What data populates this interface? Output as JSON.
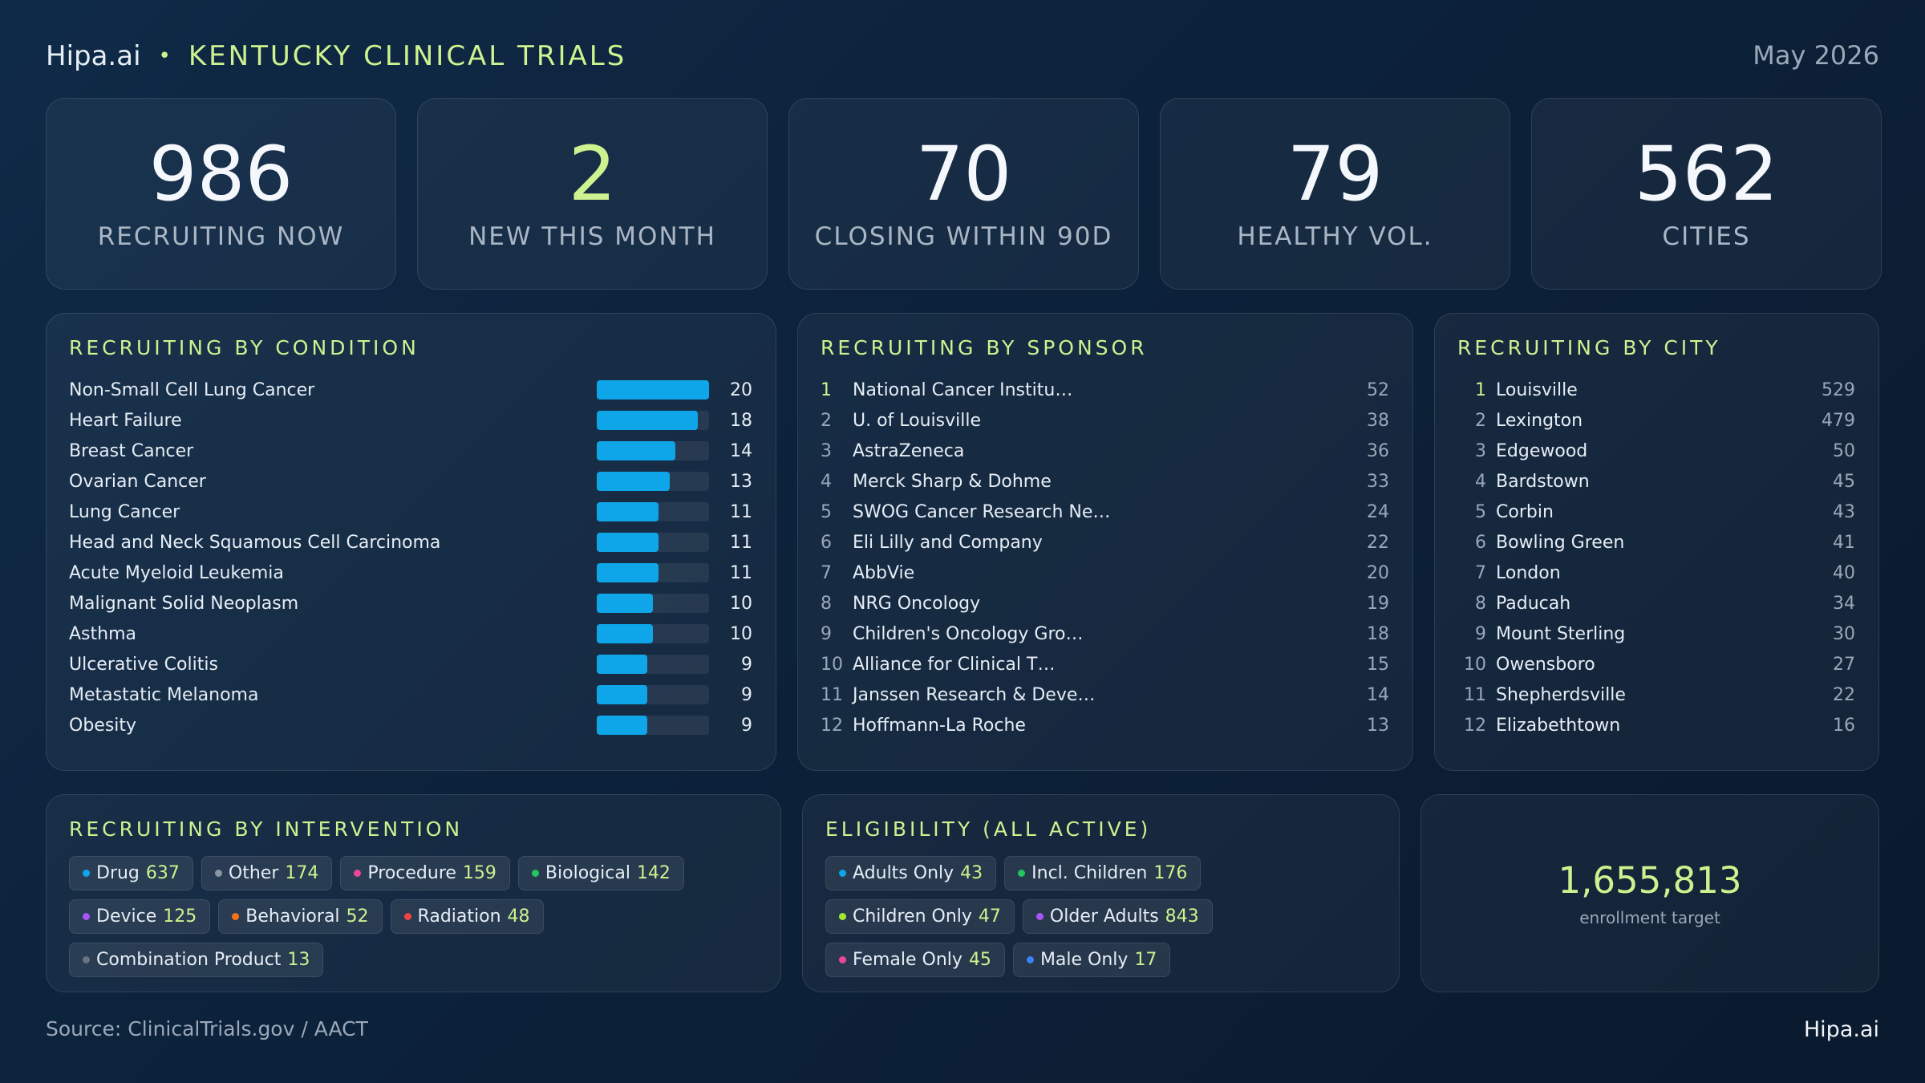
{
  "header": {
    "brand": "Hipa.ai",
    "title": "KENTUCKY CLINICAL TRIALS",
    "date": "May 2026"
  },
  "kpis": [
    {
      "value": 986,
      "label": "RECRUITING NOW"
    },
    {
      "value": 2,
      "label": "NEW THIS MONTH"
    },
    {
      "value": 70,
      "label": "CLOSING WITHIN 90D"
    },
    {
      "value": 79,
      "label": "HEALTHY VOL."
    },
    {
      "value": 562,
      "label": "CITIES"
    }
  ],
  "conditions": {
    "title": "RECRUITING BY CONDITION",
    "items": [
      {
        "name": "Non-Small Cell Lung Cancer",
        "value": 20
      },
      {
        "name": "Heart Failure",
        "value": 18
      },
      {
        "name": "Breast Cancer",
        "value": 14
      },
      {
        "name": "Ovarian Cancer",
        "value": 13
      },
      {
        "name": "Lung Cancer",
        "value": 11
      },
      {
        "name": "Head and Neck Squamous Cell Carcinoma",
        "value": 11
      },
      {
        "name": "Acute Myeloid Leukemia",
        "value": 11
      },
      {
        "name": "Malignant Solid Neoplasm",
        "value": 10
      },
      {
        "name": "Asthma",
        "value": 10
      },
      {
        "name": "Ulcerative Colitis",
        "value": 9
      },
      {
        "name": "Metastatic Melanoma",
        "value": 9
      },
      {
        "name": "Obesity",
        "value": 9
      }
    ]
  },
  "sponsors": {
    "title": "RECRUITING BY SPONSOR",
    "items": [
      {
        "rank": 1,
        "name": "National Cancer Institu…",
        "value": 52
      },
      {
        "rank": 2,
        "name": "U. of Louisville",
        "value": 38
      },
      {
        "rank": 3,
        "name": "AstraZeneca",
        "value": 36
      },
      {
        "rank": 4,
        "name": "Merck Sharp & Dohme",
        "value": 33
      },
      {
        "rank": 5,
        "name": "SWOG Cancer Research Ne…",
        "value": 24
      },
      {
        "rank": 6,
        "name": "Eli Lilly and Company",
        "value": 22
      },
      {
        "rank": 7,
        "name": "AbbVie",
        "value": 20
      },
      {
        "rank": 8,
        "name": "NRG Oncology",
        "value": 19
      },
      {
        "rank": 9,
        "name": "Children's Oncology Gro…",
        "value": 18
      },
      {
        "rank": 10,
        "name": "Alliance for Clinical T…",
        "value": 15
      },
      {
        "rank": 11,
        "name": "Janssen Research & Deve…",
        "value": 14
      },
      {
        "rank": 12,
        "name": "Hoffmann-La Roche",
        "value": 13
      }
    ]
  },
  "cities": {
    "title": "RECRUITING BY CITY",
    "items": [
      {
        "rank": 1,
        "name": "Louisville",
        "value": 529
      },
      {
        "rank": 2,
        "name": "Lexington",
        "value": 479
      },
      {
        "rank": 3,
        "name": "Edgewood",
        "value": 50
      },
      {
        "rank": 4,
        "name": "Bardstown",
        "value": 45
      },
      {
        "rank": 5,
        "name": "Corbin",
        "value": 43
      },
      {
        "rank": 6,
        "name": "Bowling Green",
        "value": 41
      },
      {
        "rank": 7,
        "name": "London",
        "value": 40
      },
      {
        "rank": 8,
        "name": "Paducah",
        "value": 34
      },
      {
        "rank": 9,
        "name": "Mount Sterling",
        "value": 30
      },
      {
        "rank": 10,
        "name": "Owensboro",
        "value": 27
      },
      {
        "rank": 11,
        "name": "Shepherdsville",
        "value": 22
      },
      {
        "rank": 12,
        "name": "Elizabethtown",
        "value": 16
      }
    ]
  },
  "interventions": {
    "title": "RECRUITING BY INTERVENTION",
    "items": [
      {
        "name": "Drug",
        "value": 637,
        "color": "#0ea5e9"
      },
      {
        "name": "Other",
        "value": 174,
        "color": "#8b95a1"
      },
      {
        "name": "Procedure",
        "value": 159,
        "color": "#ec4899"
      },
      {
        "name": "Biological",
        "value": 142,
        "color": "#22c55e"
      },
      {
        "name": "Device",
        "value": 125,
        "color": "#a855f7"
      },
      {
        "name": "Behavioral",
        "value": 52,
        "color": "#f97316"
      },
      {
        "name": "Radiation",
        "value": 48,
        "color": "#ef4444"
      },
      {
        "name": "Combination Product",
        "value": 13,
        "color": "#6b7280"
      }
    ]
  },
  "eligibility": {
    "title": "ELIGIBILITY (ALL ACTIVE)",
    "items": [
      {
        "name": "Adults Only",
        "value": 43,
        "color": "#0ea5e9"
      },
      {
        "name": "Incl. Children",
        "value": 176,
        "color": "#22c55e"
      },
      {
        "name": "Children Only",
        "value": 47,
        "color": "#a3e635"
      },
      {
        "name": "Older Adults",
        "value": 843,
        "color": "#a855f7"
      },
      {
        "name": "Female Only",
        "value": 45,
        "color": "#ec4899"
      },
      {
        "name": "Male Only",
        "value": 17,
        "color": "#3b82f6"
      }
    ]
  },
  "enrollment": {
    "value": "1,655,813",
    "label": "enrollment target"
  },
  "footer": {
    "source": "Source: ClinicalTrials.gov / AACT",
    "brand": "Hipa.ai"
  }
}
